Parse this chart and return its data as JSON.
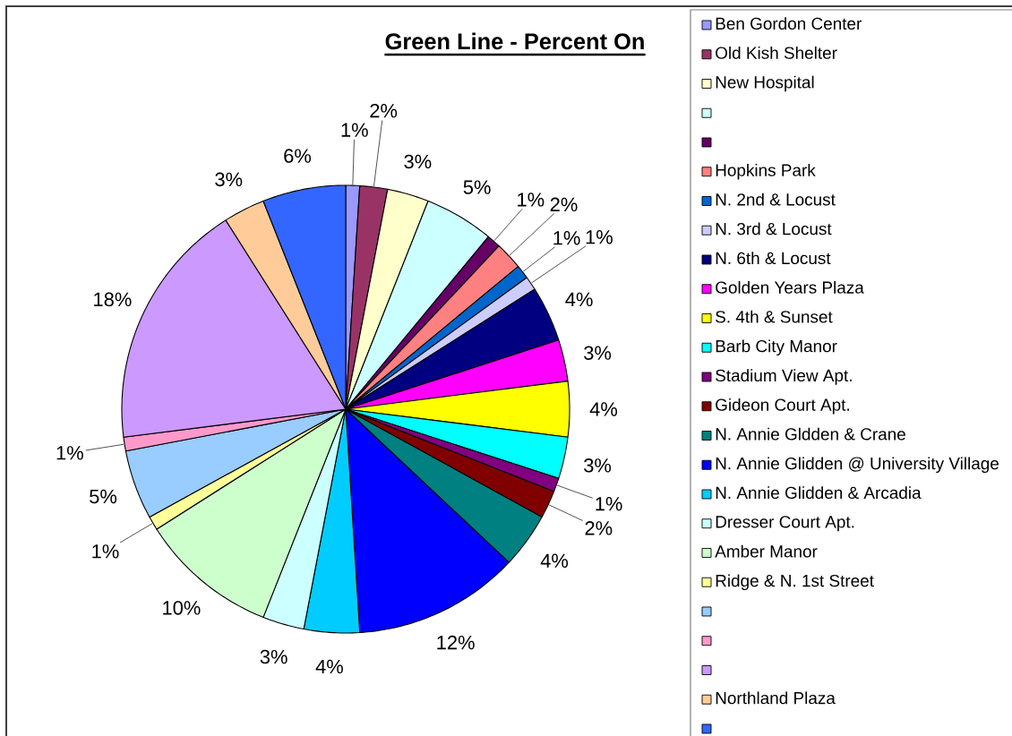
{
  "chart_data": {
    "type": "pie",
    "title": "Green Line - Percent On",
    "categories": [
      "Ben Gordon Center",
      "Old Kish Shelter",
      "New Hospital",
      null,
      null,
      "Hopkins Park",
      "N. 2nd & Locust",
      "N. 3rd & Locust",
      "N. 6th & Locust",
      "Golden Years Plaza",
      "S. 4th & Sunset",
      "Barb City Manor",
      "Stadium View Apt.",
      "Gideon Court Apt.",
      "N. Annie Gldden & Crane",
      "N. Annie Glidden @ University Village",
      "N. Annie Glidden & Arcadia",
      "Dresser Court Apt.",
      "Amber Manor",
      "Ridge & N. 1st Street",
      null,
      null,
      null,
      "Northland Plaza",
      null
    ],
    "values": [
      1,
      2,
      3,
      5,
      1,
      2,
      1,
      1,
      4,
      3,
      4,
      3,
      1,
      2,
      4,
      12,
      4,
      3,
      10,
      1,
      5,
      1,
      18,
      3,
      6
    ],
    "value_labels": [
      "1%",
      "2%",
      "3%",
      "5%",
      "1%",
      "2%",
      "1%",
      "1%",
      "4%",
      "3%",
      "4%",
      "3%",
      "1%",
      "2%",
      "4%",
      "12%",
      "4%",
      "3%",
      "10%",
      "1%",
      "5%",
      "1%",
      "18%",
      "3%",
      "6%"
    ],
    "colors": [
      "#9999ff",
      "#993366",
      "#ffffcc",
      "#ccffff",
      "#660066",
      "#ff8080",
      "#0066cc",
      "#ccccff",
      "#000080",
      "#ff00ff",
      "#ffff00",
      "#00ffff",
      "#800080",
      "#800000",
      "#008080",
      "#0000ff",
      "#00ccff",
      "#ccffff",
      "#ccffcc",
      "#ffff99",
      "#99ccff",
      "#ff99cc",
      "#cc99ff",
      "#ffcc99",
      "#3366ff"
    ],
    "legend": "right"
  }
}
